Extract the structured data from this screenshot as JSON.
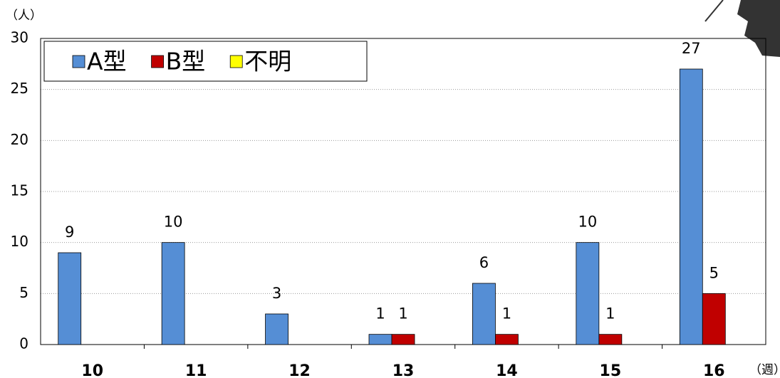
{
  "chart_data": {
    "type": "bar",
    "y_label": "（人）",
    "x_label": "（週）",
    "categories": [
      "10",
      "11",
      "12",
      "13",
      "14",
      "15",
      "16"
    ],
    "series": [
      {
        "name": "A型",
        "color": "#558ed5",
        "values": [
          9,
          10,
          3,
          1,
          6,
          10,
          27
        ]
      },
      {
        "name": "B型",
        "color": "#c00000",
        "values": [
          0,
          0,
          0,
          1,
          1,
          1,
          5
        ]
      },
      {
        "name": "不明",
        "color": "#ffff00",
        "values": [
          0,
          0,
          0,
          0,
          0,
          0,
          0
        ]
      }
    ],
    "ylim": [
      0,
      30
    ],
    "yticks": [
      0,
      5,
      10,
      15,
      20,
      25,
      30
    ],
    "grid": true,
    "legend": "top-left"
  }
}
